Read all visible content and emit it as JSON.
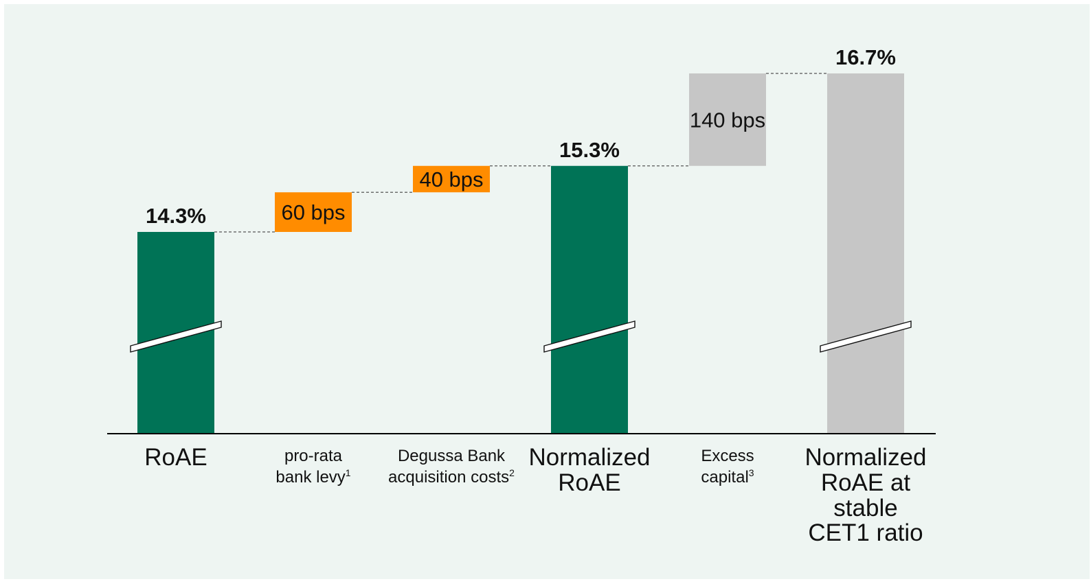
{
  "chart_data": {
    "type": "waterfall",
    "title": "",
    "xlabel": "",
    "ylabel": "",
    "y_axis_visible": false,
    "axis_break": true,
    "categories": [
      {
        "lines": [
          "RoAE"
        ],
        "footnote": "",
        "style": "large"
      },
      {
        "lines": [
          "pro-rata",
          "bank levy"
        ],
        "footnote": "1",
        "style": "small"
      },
      {
        "lines": [
          "Degussa Bank",
          "acquisition costs"
        ],
        "footnote": "2",
        "style": "small"
      },
      {
        "lines": [
          "Normalized",
          "RoAE"
        ],
        "footnote": "",
        "style": "large"
      },
      {
        "lines": [
          "Excess",
          "capital"
        ],
        "footnote": "3",
        "style": "small"
      },
      {
        "lines": [
          "Normalized",
          "RoAE at",
          "stable",
          "CET1 ratio"
        ],
        "footnote": "",
        "style": "large"
      }
    ],
    "bars": [
      {
        "kind": "total",
        "value": 14.3,
        "label": "14.3%",
        "color": "#007356"
      },
      {
        "kind": "delta",
        "from": 14.3,
        "to": 14.9,
        "label": "60 bps",
        "color": "#ff8c00"
      },
      {
        "kind": "delta",
        "from": 14.9,
        "to": 15.3,
        "label": "40 bps",
        "color": "#ff8c00"
      },
      {
        "kind": "total",
        "value": 15.3,
        "label": "15.3%",
        "color": "#007356"
      },
      {
        "kind": "delta",
        "from": 15.3,
        "to": 16.7,
        "label": "140 bps",
        "color": "#c6c6c6"
      },
      {
        "kind": "total",
        "value": 16.7,
        "label": "16.7%",
        "color": "#c6c6c6"
      }
    ]
  },
  "colors": {
    "background": "#eef5f2",
    "total_green": "#007356",
    "adjustment_orange": "#ff8c00",
    "excess_grey": "#c6c6c6",
    "baseline": "#000000"
  }
}
